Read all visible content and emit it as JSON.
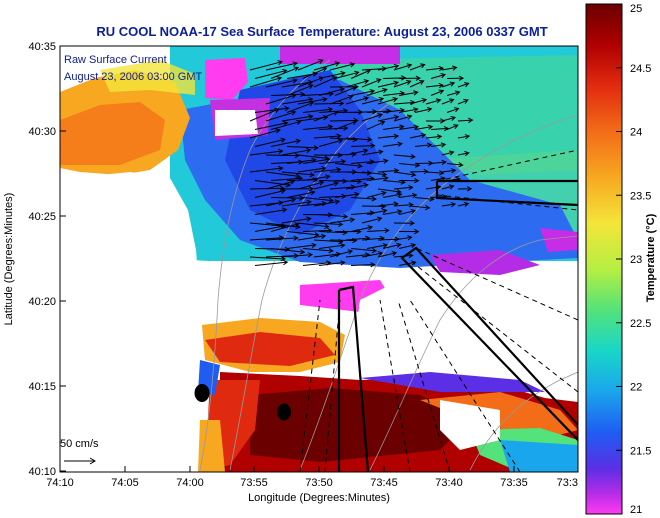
{
  "title": "RU COOL  NOAA-17  Sea Surface Temperature:  August 23, 2006 0337 GMT",
  "inset": {
    "line1": "Raw Surface Current",
    "line2": "August 23, 2006 03:00 GMT"
  },
  "scale_label": "50 cm/s",
  "x_axis": {
    "label": "Longitude (Degrees:Minutes)",
    "ticks": [
      "74:10",
      "74:05",
      "74:00",
      "73:55",
      "73:50",
      "73:45",
      "73:40",
      "73:35",
      "73:3"
    ]
  },
  "y_axis": {
    "label": "Latitude (Degrees:Minutes)",
    "ticks": [
      "40:35",
      "40:30",
      "40:25",
      "40:20",
      "40:15",
      "40:10"
    ]
  },
  "colorbar": {
    "label": "Temperature (°C)",
    "ticks": [
      "25",
      "24.5",
      "24",
      "23.5",
      "23",
      "22.5",
      "22",
      "21.5",
      "21"
    ],
    "colors": [
      "#6a0000",
      "#b00000",
      "#e02a10",
      "#f36c18",
      "#f7a820",
      "#f4e53a",
      "#b6ee42",
      "#54e27a",
      "#19d6c8",
      "#1aa6ec",
      "#1f5df2",
      "#5a2fe6",
      "#b52ce6",
      "#ff3cf0"
    ]
  },
  "colors": {
    "land": "#ffffff",
    "title": "#0b1f9a"
  },
  "markers": [
    {
      "name": "station-west"
    },
    {
      "name": "station-east"
    }
  ]
}
